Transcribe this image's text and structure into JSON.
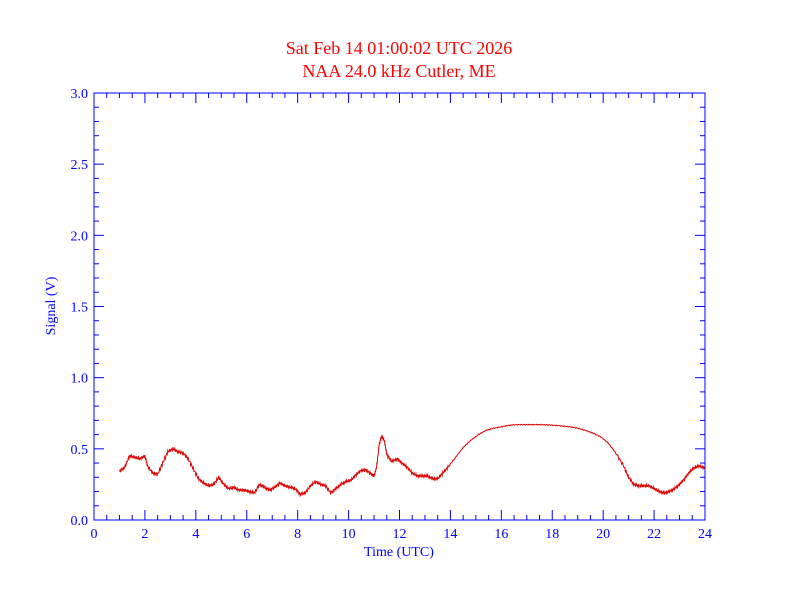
{
  "colors": {
    "axis": "#0000ff",
    "title": "#ff0000",
    "line": "#dd0000",
    "background": "#ffffff"
  },
  "chart_data": {
    "type": "line",
    "title": "Sat Feb 14 01:00:02 UTC 2026",
    "subtitle": "NAA 24.0 kHz Cutler, ME",
    "xlabel": "Time (UTC)",
    "ylabel": "Signal (V)",
    "xlim": [
      0,
      24
    ],
    "ylim": [
      0.0,
      3.0
    ],
    "xticks": [
      0,
      2,
      4,
      6,
      8,
      10,
      12,
      14,
      16,
      18,
      20,
      22,
      24
    ],
    "xtick_labels": [
      "0",
      "2",
      "4",
      "6",
      "8",
      "10",
      "12",
      "14",
      "16",
      "18",
      "20",
      "22",
      "24"
    ],
    "yticks": [
      0.0,
      0.5,
      1.0,
      1.5,
      2.0,
      2.5,
      3.0
    ],
    "ytick_labels": [
      "0.0",
      "0.5",
      "1.0",
      "1.5",
      "2.0",
      "2.5",
      "3.0"
    ],
    "grid": false,
    "series": [
      {
        "x": [
          1.0,
          1.2,
          1.4,
          1.6,
          1.8,
          2.0,
          2.1,
          2.3,
          2.5,
          2.7,
          2.9,
          3.1,
          3.3,
          3.5,
          3.7,
          3.9,
          4.1,
          4.3,
          4.5,
          4.7,
          4.9,
          5.1,
          5.3,
          5.5,
          5.7,
          5.9,
          6.1,
          6.3,
          6.5,
          6.7,
          6.9,
          7.1,
          7.3,
          7.5,
          7.7,
          7.9,
          8.1,
          8.3,
          8.5,
          8.7,
          8.9,
          9.1,
          9.3,
          9.5,
          9.7,
          9.9,
          10.1,
          10.3,
          10.5,
          10.7,
          10.9,
          11.0,
          11.1,
          11.2,
          11.3,
          11.4,
          11.5,
          11.7,
          11.9,
          12.1,
          12.3,
          12.5,
          12.7,
          12.9,
          13.1,
          13.3,
          13.5,
          13.7,
          13.9,
          14.2,
          14.5,
          14.8,
          15.1,
          15.4,
          15.7,
          16.0,
          16.3,
          16.6,
          16.9,
          17.2,
          17.5,
          17.8,
          18.1,
          18.4,
          18.7,
          19.0,
          19.3,
          19.6,
          19.9,
          20.2,
          20.5,
          20.8,
          21.0,
          21.2,
          21.4,
          21.6,
          21.8,
          22.0,
          22.2,
          22.4,
          22.6,
          22.8,
          23.0,
          23.2,
          23.4,
          23.6,
          23.8,
          24.0
        ],
        "values": [
          0.34,
          0.37,
          0.45,
          0.44,
          0.43,
          0.45,
          0.38,
          0.33,
          0.32,
          0.4,
          0.48,
          0.5,
          0.48,
          0.47,
          0.43,
          0.36,
          0.29,
          0.26,
          0.24,
          0.25,
          0.3,
          0.25,
          0.22,
          0.23,
          0.21,
          0.21,
          0.2,
          0.19,
          0.25,
          0.23,
          0.21,
          0.23,
          0.26,
          0.24,
          0.23,
          0.22,
          0.18,
          0.19,
          0.24,
          0.27,
          0.25,
          0.24,
          0.19,
          0.22,
          0.25,
          0.27,
          0.28,
          0.32,
          0.35,
          0.35,
          0.32,
          0.31,
          0.37,
          0.53,
          0.59,
          0.56,
          0.46,
          0.41,
          0.43,
          0.4,
          0.37,
          0.33,
          0.31,
          0.31,
          0.31,
          0.29,
          0.29,
          0.33,
          0.37,
          0.44,
          0.51,
          0.56,
          0.6,
          0.63,
          0.645,
          0.655,
          0.665,
          0.67,
          0.67,
          0.67,
          0.67,
          0.668,
          0.665,
          0.66,
          0.655,
          0.645,
          0.63,
          0.61,
          0.585,
          0.54,
          0.47,
          0.38,
          0.3,
          0.25,
          0.24,
          0.24,
          0.24,
          0.22,
          0.2,
          0.19,
          0.2,
          0.22,
          0.25,
          0.29,
          0.34,
          0.37,
          0.38,
          0.36
        ]
      }
    ]
  }
}
